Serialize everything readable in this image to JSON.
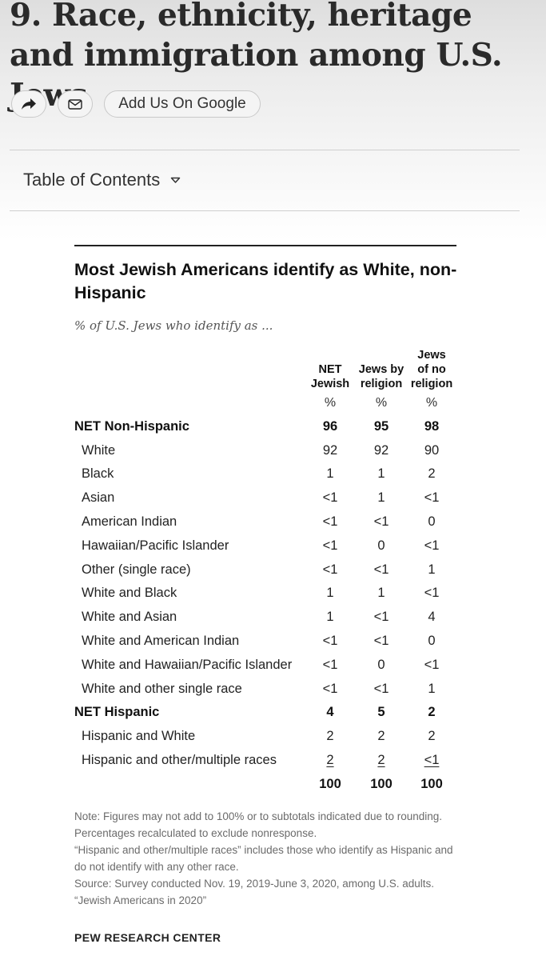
{
  "page": {
    "title": "9. Race, ethnicity, heritage and immigration among U.S. Jews"
  },
  "share": {
    "share_icon": "share-arrow-icon",
    "email_icon": "envelope-icon",
    "google_label": "Add Us On Google"
  },
  "toc": {
    "label": "Table of Contents",
    "icon": "caret-down-icon"
  },
  "chart": {
    "title": "Most Jewish Americans identify as White, non-Hispanic",
    "subtitle": "% of U.S. Jews who identify as ...",
    "columns": [
      {
        "line1": "",
        "line2": "NET",
        "line3": "Jewish",
        "pct": "%"
      },
      {
        "line1": "",
        "line2": "Jews by",
        "line3": "religion",
        "pct": "%"
      },
      {
        "line1": "Jews",
        "line2": "of no",
        "line3": "religion",
        "pct": "%"
      }
    ],
    "rows": [
      {
        "label": "NET Non-Hispanic",
        "values": [
          "96",
          "95",
          "98"
        ]
      },
      {
        "label": "White",
        "values": [
          "92",
          "92",
          "90"
        ]
      },
      {
        "label": "Black",
        "values": [
          "1",
          "1",
          "2"
        ]
      },
      {
        "label": "Asian",
        "values": [
          "<1",
          "1",
          "<1"
        ]
      },
      {
        "label": "American Indian",
        "values": [
          "<1",
          "<1",
          "0"
        ]
      },
      {
        "label": "Hawaiian/Pacific Islander",
        "values": [
          "<1",
          "0",
          "<1"
        ]
      },
      {
        "label": "Other (single race)",
        "values": [
          "<1",
          "<1",
          "1"
        ]
      },
      {
        "label": "White and Black",
        "values": [
          "1",
          "1",
          "<1"
        ]
      },
      {
        "label": "White and Asian",
        "values": [
          "1",
          "<1",
          "4"
        ]
      },
      {
        "label": "White and American Indian",
        "values": [
          "<1",
          "<1",
          "0"
        ]
      },
      {
        "label": "White and Hawaiian/Pacific Islander",
        "values": [
          "<1",
          "0",
          "<1"
        ]
      },
      {
        "label": "White and other single race",
        "values": [
          "<1",
          "<1",
          "1"
        ]
      },
      {
        "label": "NET Hispanic",
        "values": [
          "4",
          "5",
          "2"
        ]
      },
      {
        "label": "Hispanic and White",
        "values": [
          "2",
          "2",
          "2"
        ]
      },
      {
        "label": "Hispanic and other/multiple races",
        "values": [
          "2",
          "2",
          "<1"
        ]
      },
      {
        "label": "",
        "values": [
          "100",
          "100",
          "100"
        ]
      }
    ],
    "notes": [
      "Note: Figures may not add to 100% or to subtotals indicated due to rounding. Percentages recalculated to exclude nonresponse.",
      "“Hispanic and other/multiple races” includes those who identify as Hispanic and do not identify with any other race.",
      "Source: Survey conducted Nov. 19, 2019-June 3, 2020, among U.S. adults.",
      "“Jewish Americans in 2020”"
    ],
    "brand": "PEW RESEARCH CENTER"
  }
}
